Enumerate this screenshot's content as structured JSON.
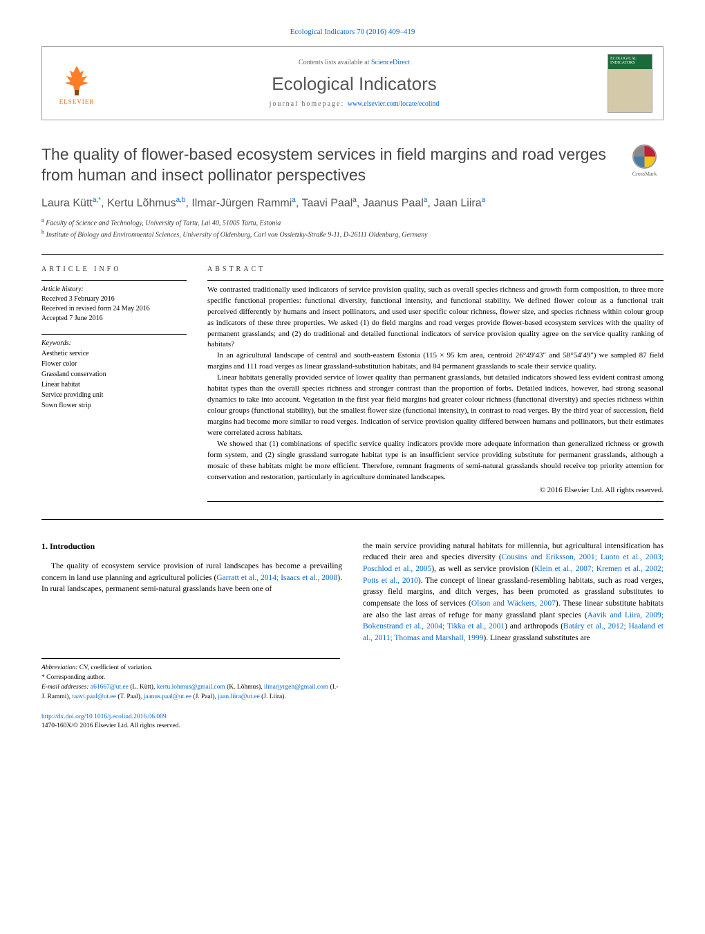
{
  "journal_ref": "Ecological Indicators 70 (2016) 409–419",
  "header": {
    "publisher": "ELSEVIER",
    "contents_prefix": "Contents lists available at ",
    "contents_link": "ScienceDirect",
    "journal_name": "Ecological Indicators",
    "homepage_prefix": "journal homepage: ",
    "homepage_link": "www.elsevier.com/locate/ecolind",
    "cover_label": "ECOLOGICAL INDICATORS"
  },
  "crossmark_label": "CrossMark",
  "title": "The quality of flower-based ecosystem services in field margins and road verges from human and insect pollinator perspectives",
  "authors_html": "Laura Kütt<sup>a,*</sup>, Kertu Lõhmus<sup>a,b</sup>, Ilmar-Jürgen Rammi<sup>a</sup>, Taavi Paal<sup>a</sup>, Jaanus Paal<sup>a</sup>, Jaan Liira<sup>a</sup>",
  "affiliations": [
    "a Faculty of Science and Technology, University of Tartu, Lai 40, 51005 Tartu, Estonia",
    "b Institute of Biology and Environmental Sciences, University of Oldenburg, Carl von Ossietzky-Straße 9-11, D-26111 Oldenburg, Germany"
  ],
  "article_info": {
    "heading": "ARTICLE INFO",
    "history_label": "Article history:",
    "received": "Received 3 February 2016",
    "revised": "Received in revised form 24 May 2016",
    "accepted": "Accepted 7 June 2016",
    "keywords_label": "Keywords:",
    "keywords": [
      "Aesthetic service",
      "Flower color",
      "Grassland conservation",
      "Linear habitat",
      "Service providing unit",
      "Sown flower strip"
    ]
  },
  "abstract": {
    "heading": "ABSTRACT",
    "paragraphs": [
      "We contrasted traditionally used indicators of service provision quality, such as overall species richness and growth form composition, to three more specific functional properties: functional diversity, functional intensity, and functional stability. We defined flower colour as a functional trait perceived differently by humans and insect pollinators, and used user specific colour richness, flower size, and species richness within colour group as indicators of these three properties. We asked (1) do field margins and road verges provide flower-based ecosystem services with the quality of permanent grasslands; and (2) do traditional and detailed functional indicators of service provision quality agree on the service quality ranking of habitats?",
      "In an agricultural landscape of central and south-eastern Estonia (115 × 95 km area, centroid 26°49′43″ and 58°54′49″) we sampled 87 field margins and 111 road verges as linear grassland-substitution habitats, and 84 permanent grasslands to scale their service quality.",
      "Linear habitats generally provided service of lower quality than permanent grasslands, but detailed indicators showed less evident contrast among habitat types than the overall species richness and stronger contrast than the proportion of forbs. Detailed indices, however, had strong seasonal dynamics to take into account. Vegetation in the first year field margins had greater colour richness (functional diversity) and species richness within colour groups (functional stability), but the smallest flower size (functional intensity), in contrast to road verges. By the third year of succession, field margins had become more similar to road verges. Indication of service provision quality differed between humans and pollinators, but their estimates were correlated across habitats.",
      "We showed that (1) combinations of specific service quality indicators provide more adequate information than generalized richness or growth form system, and (2) single grassland surrogate habitat type is an insufficient service providing substitute for permanent grasslands, although a mosaic of these habitats might be more efficient. Therefore, remnant fragments of semi-natural grasslands should receive top priority attention for conservation and restoration, particularly in agriculture dominated landscapes."
    ],
    "copyright": "© 2016 Elsevier Ltd. All rights reserved."
  },
  "introduction": {
    "heading": "1. Introduction",
    "col1": "The quality of ecosystem service provision of rural landscapes has become a prevailing concern in land use planning and agricultural policies (Garratt et al., 2014; Isaacs et al., 2008). In rural landscapes, permanent semi-natural grasslands have been one of",
    "col1_links": [
      "Garratt et al., 2014; Isaacs et al., 2008"
    ],
    "col2_pre": "the main service providing natural habitats for millennia, but agricultural intensification has reduced their area and species diversity (",
    "col2_link1": "Cousins and Eriksson, 2001; Luoto et al., 2003; Poschlod et al., 2005",
    "col2_mid1": "), as well as service provision (",
    "col2_link2": "Klein et al., 2007; Kremen et al., 2002; Potts et al., 2010",
    "col2_mid2": "). The concept of linear grassland-resembling habitats, such as road verges, grassy field margins, and ditch verges, has been promoted as grassland substitutes to compensate the loss of services (",
    "col2_link3": "Olson and Wäckers, 2007",
    "col2_mid3": "). These linear substitute habitats are also the last areas of refuge for many grassland plant species (",
    "col2_link4": "Aavik and Liira, 2009; Bokenstrand et al., 2004; Tikka et al., 2001",
    "col2_mid4": ") and arthropods (",
    "col2_link5": "Batáry et al., 2012; Haaland et al., 2011; Thomas and Marshall, 1999",
    "col2_post": "). Linear grassland substitutes are"
  },
  "footnotes": {
    "abbrev_label": "Abbreviation:",
    "abbrev_text": " CV, coefficient of variation.",
    "corresp": "* Corresponding author.",
    "email_label": "E-mail addresses:",
    "emails": [
      {
        "addr": "a61667@ut.ee",
        "who": "(L. Kütt), "
      },
      {
        "addr": "kertu.lohmus@gmail.com",
        "who": "(K. Lõhmus), "
      },
      {
        "addr": "ilmarjyrgen@gmail.com",
        "who": "(I.-J. Rammi), "
      },
      {
        "addr": "taavi.paal@ut.ee",
        "who": "(T. Paal), "
      },
      {
        "addr": "jaanus.paal@ut.ee",
        "who": "(J. Paal), "
      },
      {
        "addr": "jaan.liira@ut.ee",
        "who": "(J. Liira)."
      }
    ]
  },
  "footer": {
    "doi": "http://dx.doi.org/10.1016/j.ecolind.2016.06.009",
    "issn": "1470-160X/© 2016 Elsevier Ltd. All rights reserved."
  },
  "colors": {
    "link": "#0066cc",
    "elsevier_orange": "#ff6600",
    "cover_green": "#1a6b3a"
  }
}
